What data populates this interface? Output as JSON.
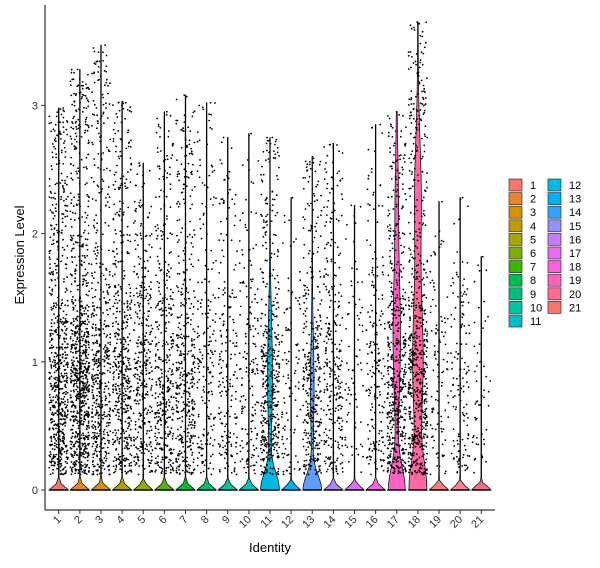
{
  "chart_data": {
    "type": "violin",
    "xlabel": "Identity",
    "ylabel": "Expression Level",
    "ylim": [
      0,
      3.75
    ],
    "yticks": [
      0,
      1,
      2,
      3
    ],
    "categories": [
      "1",
      "2",
      "3",
      "4",
      "5",
      "6",
      "7",
      "8",
      "9",
      "10",
      "11",
      "12",
      "13",
      "14",
      "15",
      "16",
      "17",
      "18",
      "19",
      "20",
      "21"
    ],
    "colors": [
      "#F8766D",
      "#E88526",
      "#D39200",
      "#B79F00",
      "#93AA00",
      "#5EB300",
      "#00BA38",
      "#00BF74",
      "#00C19F",
      "#00BFC4",
      "#00B9E3",
      "#00ADFA",
      "#619CFF",
      "#AE87FF",
      "#DB72FB",
      "#F564E3",
      "#FF61C3",
      "#FF68A1",
      "#FF7F7F",
      "#F9848C",
      "#F56E87"
    ],
    "legend_colors": [
      "#F8766D",
      "#EA8331",
      "#D89000",
      "#C09B00",
      "#A3A500",
      "#7CAE00",
      "#39B600",
      "#00BB4E",
      "#00BF7D",
      "#00C1A3",
      "#00BFC4",
      "#00BAE0",
      "#00B0F6",
      "#35A2FF",
      "#9590FF",
      "#C77CFF",
      "#E76BF3",
      "#FA62DB",
      "#FF62BC",
      "#FF6C91",
      "#F8766D"
    ],
    "series": [
      {
        "name": "1",
        "max": 2.98,
        "pct_nonzero": 0.75
      },
      {
        "name": "2",
        "max": 3.28,
        "pct_nonzero": 0.85
      },
      {
        "name": "3",
        "max": 3.47,
        "pct_nonzero": 0.55
      },
      {
        "name": "4",
        "max": 3.03,
        "pct_nonzero": 0.5
      },
      {
        "name": "5",
        "max": 2.55,
        "pct_nonzero": 0.4
      },
      {
        "name": "6",
        "max": 2.95,
        "pct_nonzero": 0.42
      },
      {
        "name": "7",
        "max": 3.08,
        "pct_nonzero": 0.45
      },
      {
        "name": "8",
        "max": 3.02,
        "pct_nonzero": 0.2
      },
      {
        "name": "9",
        "max": 2.75,
        "pct_nonzero": 0.2
      },
      {
        "name": "10",
        "max": 2.78,
        "pct_nonzero": 0.15
      },
      {
        "name": "11",
        "max": 2.75,
        "pct_nonzero": 0.55
      },
      {
        "name": "12",
        "max": 2.28,
        "pct_nonzero": 0.1
      },
      {
        "name": "13",
        "max": 2.6,
        "pct_nonzero": 0.4
      },
      {
        "name": "14",
        "max": 2.7,
        "pct_nonzero": 0.3
      },
      {
        "name": "15",
        "max": 2.22,
        "pct_nonzero": 0.08
      },
      {
        "name": "16",
        "max": 2.85,
        "pct_nonzero": 0.2
      },
      {
        "name": "17",
        "max": 2.95,
        "pct_nonzero": 0.6
      },
      {
        "name": "18",
        "max": 3.65,
        "pct_nonzero": 0.75
      },
      {
        "name": "19",
        "max": 2.25,
        "pct_nonzero": 0.1
      },
      {
        "name": "20",
        "max": 2.28,
        "pct_nonzero": 0.15
      },
      {
        "name": "21",
        "max": 1.82,
        "pct_nonzero": 0.05
      }
    ],
    "legend_placement": "right",
    "grid": false
  }
}
